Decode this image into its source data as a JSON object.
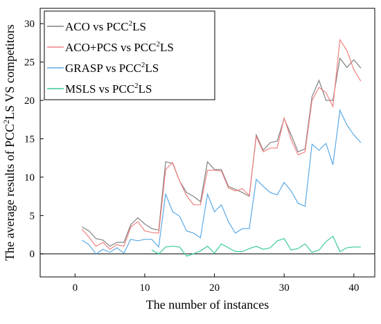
{
  "chart_data": {
    "type": "line",
    "xlabel": "The number of instances",
    "ylabel": {
      "pre": "The average results of PCC",
      "sup": "2",
      "post": "LS VS competitors"
    },
    "xlim": [
      -5,
      43
    ],
    "ylim": [
      -3,
      32
    ],
    "xticks": [
      0,
      10,
      20,
      30,
      40
    ],
    "yticks": [
      0,
      5,
      10,
      15,
      20,
      25,
      30
    ],
    "grid": false,
    "legend_position": "top-left",
    "x": [
      1,
      2,
      3,
      4,
      5,
      6,
      7,
      8,
      9,
      10,
      11,
      12,
      13,
      14,
      15,
      16,
      17,
      18,
      19,
      20,
      21,
      22,
      23,
      24,
      25,
      26,
      27,
      28,
      29,
      30,
      31,
      32,
      33,
      34,
      35,
      36,
      37,
      38,
      39,
      40,
      41
    ],
    "series": [
      {
        "name": {
          "pre": "ACO vs PCC",
          "sup": "2",
          "post": "LS"
        },
        "color": "#808080",
        "values": [
          3.5,
          3.0,
          2.0,
          1.8,
          1.0,
          1.5,
          1.5,
          3.8,
          4.7,
          3.9,
          3.3,
          3.1,
          12.0,
          11.8,
          9.5,
          8.0,
          7.5,
          6.8,
          12.0,
          11.0,
          11.0,
          8.8,
          8.4,
          8.0,
          7.5,
          15.5,
          13.5,
          14.5,
          14.7,
          17.6,
          15.5,
          13.3,
          13.7,
          20.5,
          22.6,
          20.0,
          20.0,
          25.5,
          24.3,
          25.3,
          24.2
        ]
      },
      {
        "name": {
          "pre": "ACO+PCS vs PCC",
          "sup": "2",
          "post": "LS"
        },
        "color": "#f08080",
        "values": [
          3.2,
          2.2,
          1.0,
          1.5,
          0.6,
          1.2,
          1.0,
          3.5,
          4.2,
          3.0,
          2.8,
          2.7,
          11.0,
          11.9,
          9.5,
          7.6,
          6.4,
          6.4,
          10.9,
          10.9,
          10.8,
          8.6,
          8.2,
          8.5,
          7.6,
          15.3,
          13.3,
          13.8,
          13.8,
          17.7,
          14.9,
          12.9,
          13.3,
          20.0,
          21.7,
          21.0,
          19.2,
          27.9,
          26.5,
          24.0,
          22.5
        ]
      },
      {
        "name": {
          "pre": "GRASP vs PCC",
          "sup": "2",
          "post": "LS"
        },
        "color": "#5aa9e6",
        "values": [
          1.8,
          1.2,
          0.0,
          0.6,
          0.2,
          0.8,
          0.1,
          1.9,
          1.7,
          1.9,
          1.9,
          0.9,
          7.8,
          5.5,
          4.9,
          3.0,
          2.7,
          2.1,
          7.8,
          5.5,
          6.4,
          4.2,
          2.7,
          3.3,
          3.3,
          9.7,
          8.8,
          8.0,
          7.7,
          9.3,
          8.2,
          6.6,
          6.2,
          14.3,
          13.5,
          14.4,
          11.6,
          18.7,
          16.8,
          15.5,
          14.5
        ]
      },
      {
        "name": {
          "pre": "MSLS vs PCC",
          "sup": "2",
          "post": "LS"
        },
        "color": "#3cc8a0",
        "values": [
          null,
          null,
          null,
          null,
          null,
          null,
          null,
          null,
          null,
          null,
          0.5,
          0.0,
          0.9,
          1.0,
          0.9,
          -0.3,
          0.0,
          0.4,
          1.0,
          0.1,
          1.3,
          0.8,
          0.3,
          0.3,
          0.7,
          1.0,
          0.6,
          0.8,
          1.7,
          2.0,
          0.5,
          0.7,
          1.3,
          0.2,
          0.5,
          1.6,
          2.3,
          0.3,
          0.8,
          0.9,
          0.9
        ]
      }
    ]
  }
}
